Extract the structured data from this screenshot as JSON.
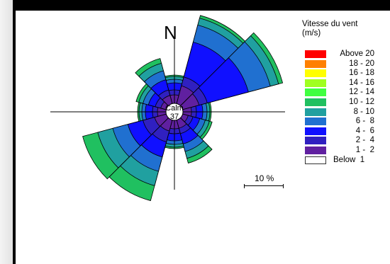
{
  "chart_data": {
    "type": "windrose",
    "legend_title": "Vitesse du vent\n(m/s)",
    "north_label": "N",
    "calm_label": "Calm",
    "calm_value": "37",
    "scale_label": "10 %",
    "bins": [
      {
        "label": "Above 20",
        "color": "#ff0000"
      },
      {
        "label": "18 - 20",
        "color": "#ff8000"
      },
      {
        "label": "16 - 18",
        "color": "#ffff00"
      },
      {
        "label": "14 - 16",
        "color": "#a0ff20"
      },
      {
        "label": "12 - 14",
        "color": "#40ff40"
      },
      {
        "label": "10 - 12",
        "color": "#20c060"
      },
      {
        "label": "8 - 10",
        "color": "#20a0a0"
      },
      {
        "label": "6 -  8",
        "color": "#2070d0"
      },
      {
        "label": "4 -  6",
        "color": "#1010ff"
      },
      {
        "label": "2 -  4",
        "color": "#3020c0"
      },
      {
        "label": "1 -  2",
        "color": "#6020a0"
      },
      {
        "label": "Below  1",
        "color": "#ffffff"
      }
    ],
    "directions_deg": [
      0,
      30,
      60,
      90,
      120,
      150,
      180,
      210,
      240,
      270,
      300,
      330
    ],
    "cumulative_percent": [
      [
        1.2,
        1.9,
        2.9,
        3.4,
        3.8,
        4.0
      ],
      [
        2.6,
        3.9,
        9.0,
        11.5,
        12.5,
        12.9
      ],
      [
        2.4,
        3.6,
        9.6,
        12.8,
        14.0,
        14.6
      ],
      [
        1.2,
        1.9,
        2.8,
        3.4,
        3.8,
        4.0
      ],
      [
        0.8,
        1.5,
        2.5,
        3.3,
        3.9,
        4.3
      ],
      [
        1.2,
        2.0,
        3.5,
        4.6,
        5.6,
        6.3
      ],
      [
        1.2,
        1.9,
        2.9,
        3.4,
        3.8,
        4.0
      ],
      [
        1.6,
        3.2,
        5.4,
        7.5,
        9.6,
        11.8
      ],
      [
        1.7,
        3.4,
        5.6,
        7.8,
        10.0,
        12.2
      ],
      [
        1.2,
        1.9,
        2.9,
        3.4,
        3.8,
        4.0
      ],
      [
        0.8,
        1.6,
        2.6,
        3.4,
        4.0,
        4.4
      ],
      [
        1.2,
        2.0,
        3.5,
        4.8,
        5.9,
        6.6
      ]
    ],
    "ring_colors": [
      "#6020a0",
      "#3020c0",
      "#1010ff",
      "#2070d0",
      "#20a0a0",
      "#20c060"
    ]
  }
}
